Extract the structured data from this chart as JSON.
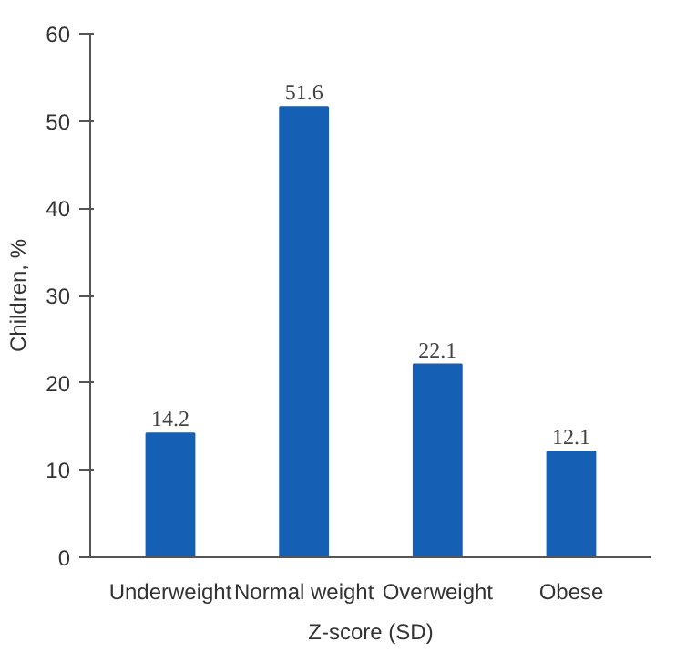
{
  "chart_data": {
    "type": "bar",
    "xlabel": "Z-score (SD)",
    "ylabel": "Children, %",
    "categories": [
      "Underweight",
      "Normal weight",
      "Overweight",
      "Obese"
    ],
    "values": [
      14.2,
      51.6,
      22.1,
      12.1
    ],
    "color": "#1560b5",
    "ylim": [
      0,
      60
    ],
    "yticks": [
      0,
      10,
      20,
      30,
      40,
      50,
      60
    ],
    "grid": false,
    "data_labels": true
  }
}
